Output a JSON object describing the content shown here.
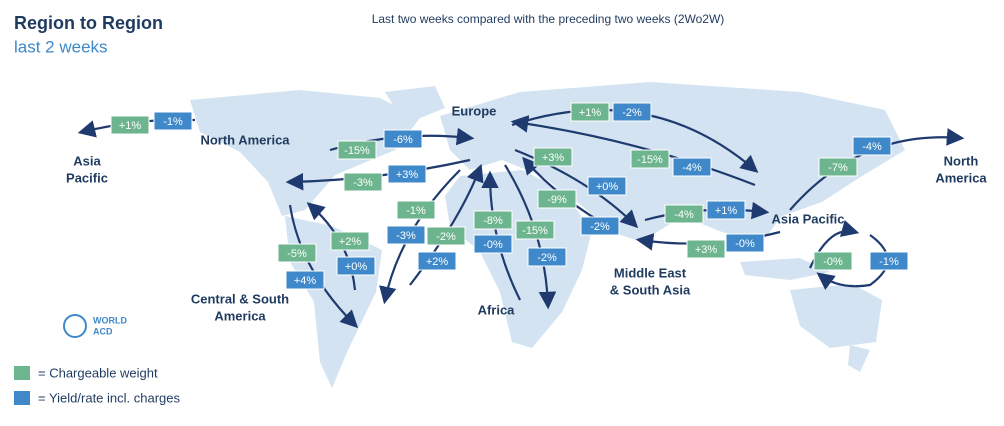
{
  "header": {
    "title": "Region to Region",
    "subtitle": "last 2 weeks",
    "note": "Last two weeks compared with the preceding two weeks (2Wo2W)"
  },
  "regions": [
    {
      "lines": [
        "Asia",
        "Pacific"
      ]
    },
    {
      "lines": [
        "North America"
      ]
    },
    {
      "lines": [
        "Europe"
      ]
    },
    {
      "lines": [
        "Central & South",
        "America"
      ]
    },
    {
      "lines": [
        "Africa"
      ]
    },
    {
      "lines": [
        "Middle East",
        "& South Asia"
      ]
    },
    {
      "lines": [
        "Asia Pacific"
      ]
    },
    {
      "lines": [
        "North",
        "America"
      ]
    }
  ],
  "flows": [
    {
      "weight": "+1%",
      "yield": "-1%"
    },
    {
      "weight": "-15%",
      "yield": "-6%"
    },
    {
      "weight": "-3%",
      "yield": "+3%"
    },
    {
      "weight": "-5%",
      "yield": "+4%"
    },
    {
      "weight": "+2%",
      "yield": "+0%"
    },
    {
      "weight": "-1%",
      "yield": "-3%"
    },
    {
      "weight": "-2%",
      "yield": "+2%"
    },
    {
      "weight": "-8%",
      "yield": "-0%"
    },
    {
      "weight": "-15%",
      "yield": "-2%"
    },
    {
      "weight": "+3%",
      "yield": "+0%"
    },
    {
      "weight": "-9%",
      "yield": "-2%"
    },
    {
      "weight": "+1%",
      "yield": "-2%"
    },
    {
      "weight": "-15%",
      "yield": "-4%"
    },
    {
      "weight": "-4%",
      "yield": "+1%"
    },
    {
      "weight": "+3%",
      "yield": "-0%"
    },
    {
      "weight": "-7%",
      "yield": "-4%"
    },
    {
      "weight": "-0%",
      "yield": "-1%"
    }
  ],
  "logo": [
    "WORLD",
    "ACD"
  ],
  "legend": {
    "weight": "=  Chargeable weight",
    "yield": "=  Yield/rate incl. charges"
  }
}
